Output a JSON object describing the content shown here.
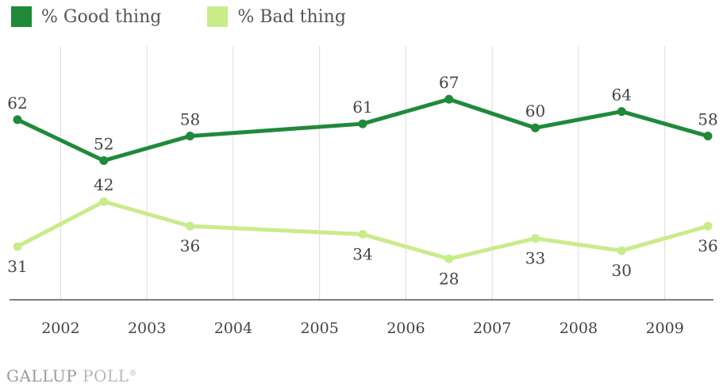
{
  "legend": [
    {
      "label": "% Good thing",
      "color": "#1f8a3a"
    },
    {
      "label": "% Bad thing",
      "color": "#c9ec8a"
    }
  ],
  "source": {
    "brand": "GALLUP",
    "product": "POLL",
    "mark": "®"
  },
  "chart_data": {
    "type": "line",
    "x_axis_years": [
      "2002",
      "2003",
      "2004",
      "2005",
      "2006",
      "2007",
      "2008",
      "2009"
    ],
    "x": [
      2001.5,
      2002.5,
      2003.5,
      2005.5,
      2006.5,
      2007.5,
      2008.5,
      2009.5
    ],
    "series": [
      {
        "name": "% Good thing",
        "color": "#1f8a3a",
        "values": [
          62,
          52,
          58,
          61,
          67,
          60,
          64,
          58
        ]
      },
      {
        "name": "% Bad thing",
        "color": "#c9ec8a",
        "values": [
          31,
          42,
          36,
          34,
          28,
          33,
          30,
          36
        ]
      }
    ],
    "ylim": [
      18,
      80
    ],
    "grid": "vertical",
    "legend_position": "top-left"
  }
}
